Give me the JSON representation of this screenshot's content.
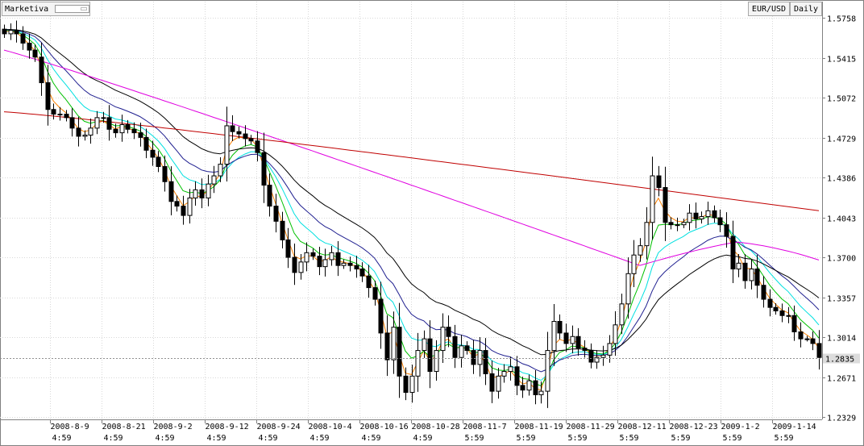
{
  "app": {
    "brand": "Marketiva",
    "symbol": "EUR/USD",
    "timeframe": "Daily",
    "last_price": "1.2835"
  },
  "colors": {
    "bull_fill": "#ffffff",
    "bear_fill": "#000000",
    "ma_orange": "#ff8000",
    "ma_green": "#00c000",
    "ma_cyan": "#00e0e0",
    "ma_blue": "#202090",
    "ma_black": "#000000",
    "ma_magenta": "#e000e0",
    "ma_red": "#c00000",
    "grid": "#d8d8d8"
  },
  "chart_data": {
    "type": "candlestick",
    "grid": true,
    "ylim": [
      1.2329,
      1.5758
    ],
    "y_ticks": [
      "1.5758",
      "1.5415",
      "1.5072",
      "1.4729",
      "1.4386",
      "1.4043",
      "1.3700",
      "1.3357",
      "1.3014",
      "1.2671",
      "1.2329"
    ],
    "x_labels": [
      {
        "date": "2008-8-9",
        "time": "4:59"
      },
      {
        "date": "2008-8-21",
        "time": "4:59"
      },
      {
        "date": "2008-9-2",
        "time": "4:59"
      },
      {
        "date": "2008-9-12",
        "time": "4:59"
      },
      {
        "date": "2008-9-24",
        "time": "4:59"
      },
      {
        "date": "2008-10-4",
        "time": "4:59"
      },
      {
        "date": "2008-10-16",
        "time": "4:59"
      },
      {
        "date": "2008-10-28",
        "time": "4:59"
      },
      {
        "date": "2008-11-7",
        "time": "5:59"
      },
      {
        "date": "2008-11-19",
        "time": "5:59"
      },
      {
        "date": "2008-11-29",
        "time": "5:59"
      },
      {
        "date": "2008-12-11",
        "time": "5:59"
      },
      {
        "date": "2008-12-23",
        "time": "5:59"
      },
      {
        "date": "2009-1-2",
        "time": "5:59"
      },
      {
        "date": "2009-1-14",
        "time": "5:59"
      }
    ],
    "current_price": 1.2835,
    "closes": [
      1.562,
      1.565,
      1.562,
      1.554,
      1.548,
      1.542,
      1.52,
      1.497,
      1.493,
      1.493,
      1.49,
      1.481,
      1.474,
      1.475,
      1.481,
      1.49,
      1.49,
      1.48,
      1.477,
      1.484,
      1.48,
      1.477,
      1.473,
      1.462,
      1.456,
      1.448,
      1.435,
      1.418,
      1.414,
      1.406,
      1.421,
      1.428,
      1.421,
      1.433,
      1.44,
      1.45,
      1.483,
      1.478,
      1.476,
      1.472,
      1.47,
      1.46,
      1.432,
      1.414,
      1.401,
      1.385,
      1.37,
      1.357,
      1.366,
      1.374,
      1.371,
      1.362,
      1.368,
      1.374,
      1.363,
      1.365,
      1.363,
      1.36,
      1.354,
      1.344,
      1.334,
      1.305,
      1.282,
      1.31,
      1.268,
      1.254,
      1.268,
      1.29,
      1.3,
      1.272,
      1.29,
      1.31,
      1.302,
      1.284,
      1.294,
      1.29,
      1.278,
      1.29,
      1.27,
      1.255,
      1.268,
      1.272,
      1.276,
      1.26,
      1.256,
      1.264,
      1.252,
      1.255,
      1.29,
      1.315,
      1.305,
      1.296,
      1.302,
      1.292,
      1.29,
      1.28,
      1.284,
      1.286,
      1.296,
      1.312,
      1.33,
      1.356,
      1.372,
      1.38,
      1.4,
      1.44,
      1.43,
      1.4,
      1.398,
      1.398,
      1.4,
      1.408,
      1.403,
      1.405,
      1.41,
      1.404,
      1.398,
      1.388,
      1.36,
      1.365,
      1.35,
      1.36,
      1.346,
      1.334,
      1.327,
      1.324,
      1.32,
      1.32,
      1.306,
      1.3,
      1.3,
      1.296,
      1.284
    ]
  },
  "overlays": {
    "moving_average_lines": 7
  }
}
